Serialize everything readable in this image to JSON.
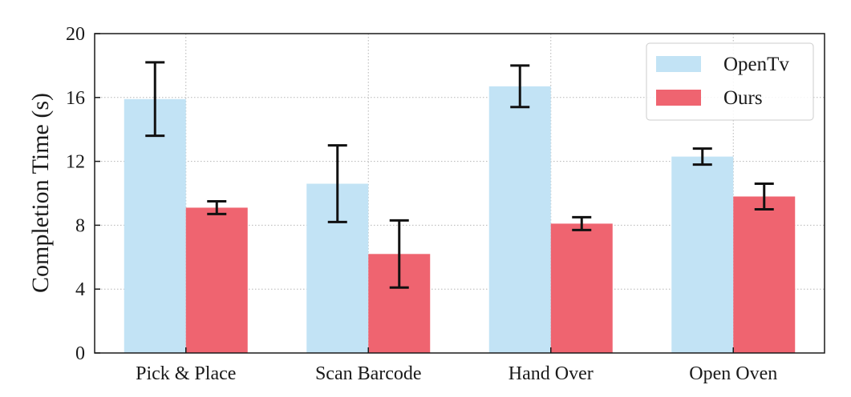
{
  "chart_data": {
    "type": "bar",
    "title": "",
    "xlabel": "",
    "ylabel": "Completion Time (s)",
    "ylim": [
      0,
      20
    ],
    "yticks": [
      0,
      4,
      8,
      12,
      16,
      20
    ],
    "grid": true,
    "legend_position": "top-right",
    "categories": [
      "Pick & Place",
      "Scan Barcode",
      "Hand Over",
      "Open Oven"
    ],
    "series": [
      {
        "name": "OpenTv",
        "color": "#c2e3f5",
        "values": [
          15.9,
          10.6,
          16.7,
          12.3
        ],
        "error_low": [
          13.6,
          8.2,
          15.4,
          11.8
        ],
        "error_high": [
          18.2,
          13.0,
          18.0,
          12.8
        ]
      },
      {
        "name": "Ours",
        "color": "#ef6470",
        "values": [
          9.1,
          6.2,
          8.1,
          9.8
        ],
        "error_low": [
          8.7,
          4.1,
          7.7,
          9.0
        ],
        "error_high": [
          9.5,
          8.3,
          8.5,
          10.6
        ]
      }
    ]
  }
}
